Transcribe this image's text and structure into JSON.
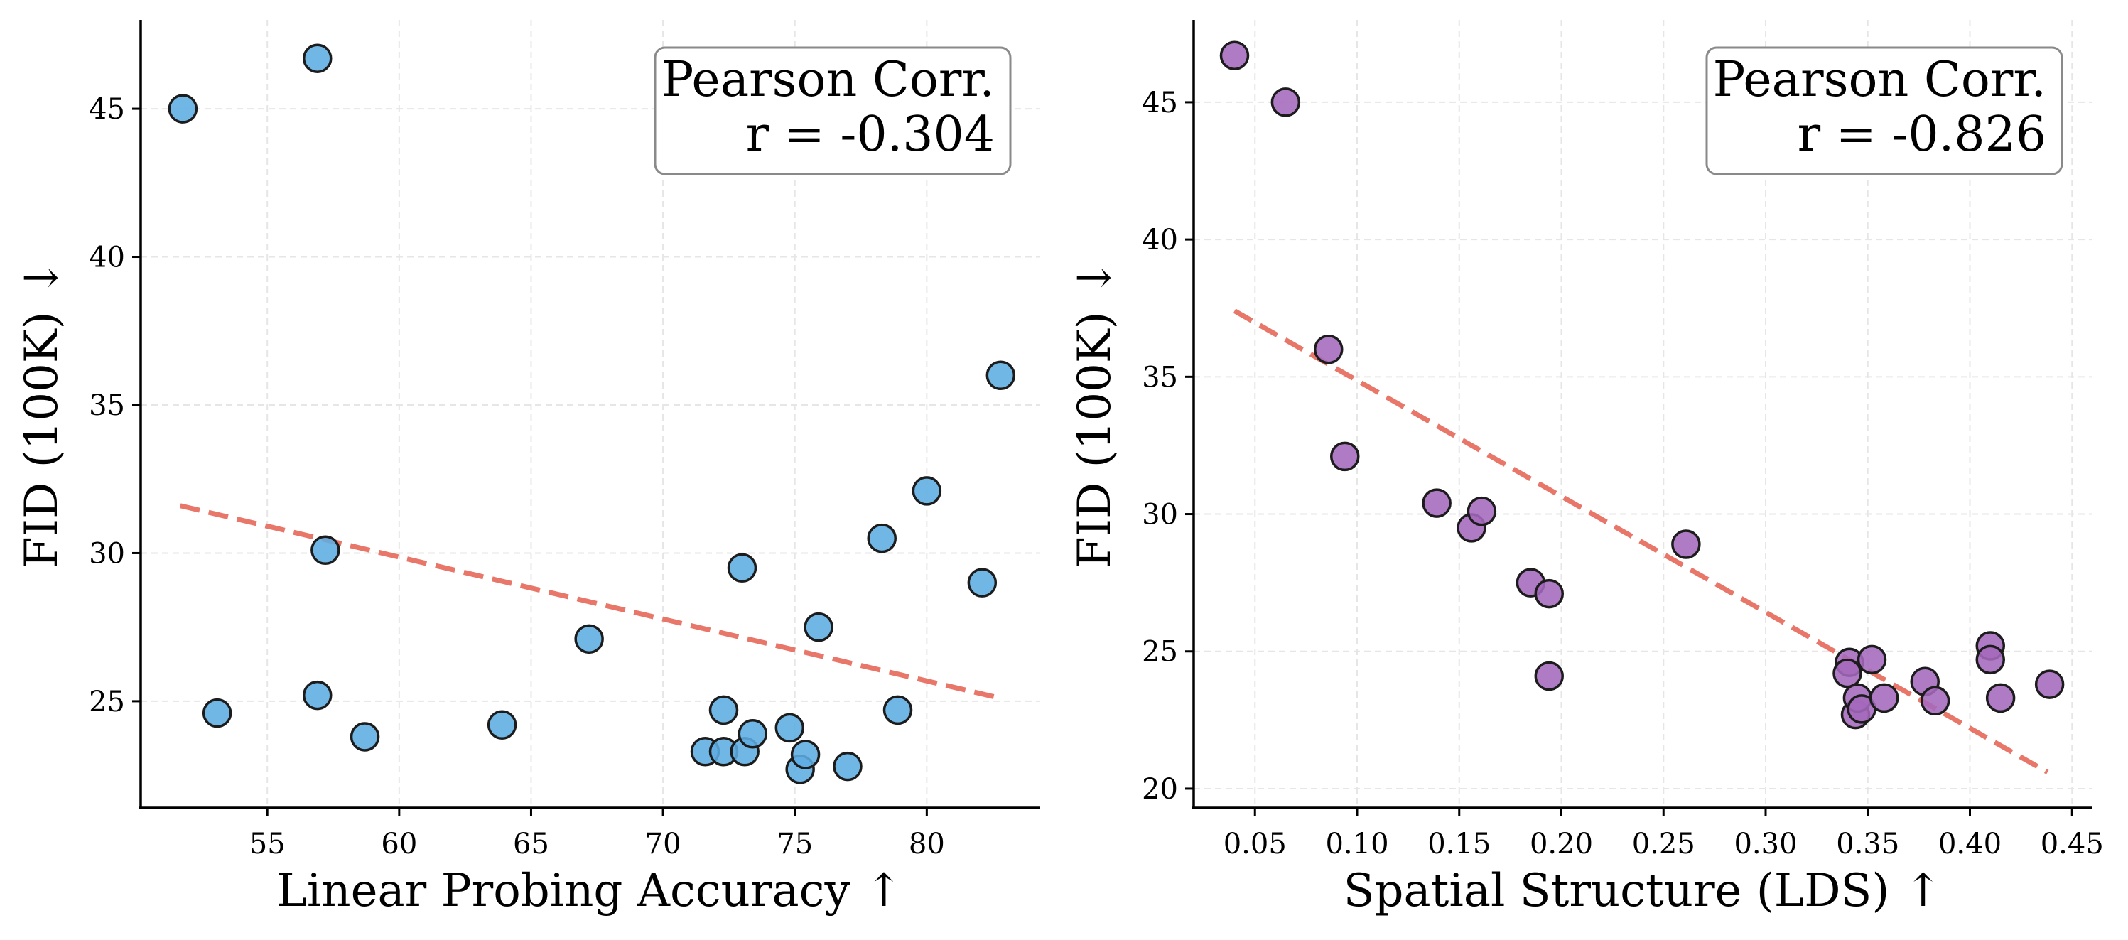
{
  "chart_data": [
    {
      "type": "scatter",
      "xlabel": "Linear Probing Accuracy ↑",
      "ylabel": "FID (100K) ↓",
      "xlim": [
        50.2,
        84.3
      ],
      "ylim": [
        21.4,
        48.0
      ],
      "xticks": [
        55,
        60,
        65,
        70,
        75,
        80
      ],
      "yticks": [
        25,
        30,
        35,
        40,
        45
      ],
      "grid": true,
      "legend": "none",
      "point_color": "#5DADE2",
      "trend_color": "#E8776A",
      "annotation": {
        "title": "Pearson Corr.",
        "value": "r = -0.304",
        "placement": "top-right"
      },
      "trend": {
        "x": [
          51.7,
          82.8
        ],
        "y": [
          31.6,
          25.1
        ]
      },
      "points": [
        {
          "x": 51.8,
          "y": 45.0
        },
        {
          "x": 56.9,
          "y": 46.7
        },
        {
          "x": 57.2,
          "y": 30.1
        },
        {
          "x": 53.1,
          "y": 24.6
        },
        {
          "x": 56.9,
          "y": 25.2
        },
        {
          "x": 58.7,
          "y": 23.8
        },
        {
          "x": 63.9,
          "y": 24.2
        },
        {
          "x": 67.2,
          "y": 27.1
        },
        {
          "x": 71.6,
          "y": 23.3
        },
        {
          "x": 72.3,
          "y": 24.7
        },
        {
          "x": 72.3,
          "y": 23.3
        },
        {
          "x": 73.0,
          "y": 29.5
        },
        {
          "x": 73.1,
          "y": 23.3
        },
        {
          "x": 73.4,
          "y": 23.9
        },
        {
          "x": 74.8,
          "y": 24.1
        },
        {
          "x": 75.2,
          "y": 22.7
        },
        {
          "x": 75.4,
          "y": 23.2
        },
        {
          "x": 75.9,
          "y": 27.5
        },
        {
          "x": 77.0,
          "y": 22.8
        },
        {
          "x": 78.3,
          "y": 30.5
        },
        {
          "x": 78.9,
          "y": 24.7
        },
        {
          "x": 80.0,
          "y": 32.1
        },
        {
          "x": 82.1,
          "y": 29.0
        },
        {
          "x": 82.8,
          "y": 36.0
        }
      ]
    },
    {
      "type": "scatter",
      "xlabel": "Spatial Structure (LDS) ↑",
      "ylabel": "FID (100K) ↓",
      "xlim": [
        0.02,
        0.46
      ],
      "ylim": [
        19.3,
        48.0
      ],
      "xticks": [
        0.05,
        0.1,
        0.15,
        0.2,
        0.25,
        0.3,
        0.35,
        0.4,
        0.45
      ],
      "yticks": [
        20,
        25,
        30,
        35,
        40,
        45
      ],
      "grid": true,
      "legend": "none",
      "point_color": "#A569BD",
      "trend_color": "#E8776A",
      "annotation": {
        "title": "Pearson Corr.",
        "value": "r = -0.826",
        "placement": "top-right"
      },
      "trend": {
        "x": [
          0.04,
          0.438
        ],
        "y": [
          37.4,
          20.6
        ]
      },
      "points": [
        {
          "x": 0.04,
          "y": 46.7
        },
        {
          "x": 0.065,
          "y": 45.0
        },
        {
          "x": 0.086,
          "y": 36.0
        },
        {
          "x": 0.094,
          "y": 32.1
        },
        {
          "x": 0.139,
          "y": 30.4
        },
        {
          "x": 0.156,
          "y": 29.5
        },
        {
          "x": 0.161,
          "y": 30.1
        },
        {
          "x": 0.185,
          "y": 27.5
        },
        {
          "x": 0.194,
          "y": 27.1
        },
        {
          "x": 0.194,
          "y": 24.1
        },
        {
          "x": 0.261,
          "y": 28.9
        },
        {
          "x": 0.341,
          "y": 24.6
        },
        {
          "x": 0.34,
          "y": 24.2
        },
        {
          "x": 0.344,
          "y": 22.7
        },
        {
          "x": 0.345,
          "y": 23.3
        },
        {
          "x": 0.347,
          "y": 22.9
        },
        {
          "x": 0.352,
          "y": 24.7
        },
        {
          "x": 0.358,
          "y": 23.3
        },
        {
          "x": 0.378,
          "y": 23.9
        },
        {
          "x": 0.383,
          "y": 23.2
        },
        {
          "x": 0.41,
          "y": 25.2
        },
        {
          "x": 0.41,
          "y": 24.7
        },
        {
          "x": 0.415,
          "y": 23.3
        },
        {
          "x": 0.439,
          "y": 23.8
        }
      ]
    }
  ]
}
